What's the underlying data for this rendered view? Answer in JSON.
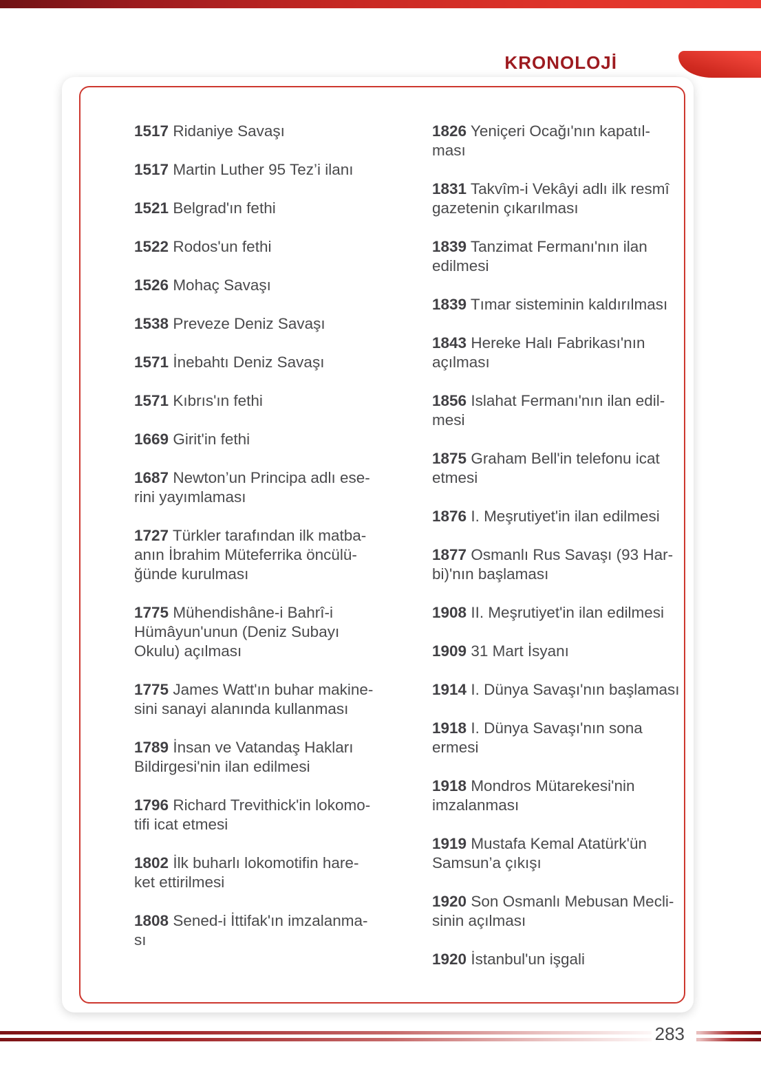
{
  "page": {
    "title": "KRONOLOJİ",
    "page_number": "283"
  },
  "colors": {
    "c-title": "#9d1b20",
    "c-border": "#cd372e",
    "c-text": "#4a4a4c",
    "c-year": "#414044",
    "c-pagenum": "#48484a",
    "c-ribbon-bright": "#f0453a",
    "c-ribbon-dark": "#c2221a",
    "c-rule-dark": "#7c1316"
  },
  "timeline": {
    "left_column": [
      {
        "year": "1517",
        "lines": [
          "Ridaniye Savaşı"
        ]
      },
      {
        "year": "1517",
        "lines": [
          "Martin Luther 95 Tez’i ilanı"
        ]
      },
      {
        "year": "1521",
        "lines": [
          "Belgrad'ın fethi"
        ]
      },
      {
        "year": "1522",
        "lines": [
          "Rodos'un fethi"
        ]
      },
      {
        "year": "1526",
        "lines": [
          "Mohaç Savaşı"
        ]
      },
      {
        "year": "1538",
        "lines": [
          "Preveze Deniz Savaşı"
        ]
      },
      {
        "year": "1571",
        "lines": [
          "İnebahtı Deniz Savaşı"
        ]
      },
      {
        "year": "1571",
        "lines": [
          "Kıbrıs'ın fethi"
        ]
      },
      {
        "year": "1669",
        "lines": [
          "Girit'in fethi"
        ]
      },
      {
        "year": "1687",
        "lines": [
          "Newton’un Principa adlı ese-",
          "rini yayımlaması"
        ]
      },
      {
        "year": "1727",
        "lines": [
          "Türkler tarafından ilk matba-",
          "anın İbrahim Müteferrika öncülü-",
          "ğünde kurulması"
        ]
      },
      {
        "year": "1775",
        "lines": [
          "Mühendishâne-i Bahrî-i",
          "Hümâyun'unun (Deniz Subayı",
          "Okulu) açılması"
        ]
      },
      {
        "year": "1775",
        "lines": [
          "James Watt'ın buhar makine-",
          "sini sanayi alanında kullanması"
        ]
      },
      {
        "year": "1789",
        "lines": [
          "İnsan ve Vatandaş Hakları",
          "Bildirgesi'nin ilan edilmesi"
        ]
      },
      {
        "year": "1796",
        "lines": [
          "Richard Trevithick'in lokomo-",
          "tifi icat etmesi"
        ]
      },
      {
        "year": "1802",
        "lines": [
          "İlk buharlı lokomotifin hare-",
          "ket ettirilmesi"
        ]
      },
      {
        "year": "1808",
        "lines": [
          "Sened-i İttifak'ın imzalanma-",
          "sı"
        ]
      }
    ],
    "right_column": [
      {
        "year": "1826",
        "lines": [
          "Yeniçeri Ocağı'nın kapatıl-",
          "ması"
        ]
      },
      {
        "year": "1831",
        "lines": [
          "Takvîm-i Vekâyi adlı ilk resmî",
          "gazetenin çıkarılması"
        ]
      },
      {
        "year": "1839",
        "lines": [
          "Tanzimat Fermanı'nın ilan",
          "edilmesi"
        ]
      },
      {
        "year": "1839",
        "lines": [
          "Tımar sisteminin kaldırılması"
        ]
      },
      {
        "year": "1843",
        "lines": [
          "Hereke Halı Fabrikası'nın",
          "açılması"
        ]
      },
      {
        "year": "1856",
        "lines": [
          "Islahat Fermanı'nın ilan edil-",
          "mesi"
        ]
      },
      {
        "year": "1875",
        "lines": [
          "Graham Bell'in telefonu icat",
          "etmesi"
        ]
      },
      {
        "year": "1876",
        "lines": [
          "I. Meşrutiyet'in ilan edilmesi"
        ]
      },
      {
        "year": "1877",
        "lines": [
          "Osmanlı Rus Savaşı (93 Har-",
          "bi)'nın başlaması"
        ]
      },
      {
        "year": "1908",
        "lines": [
          "II. Meşrutiyet'in ilan edilmesi"
        ]
      },
      {
        "year": "1909",
        "lines": [
          "31 Mart İsyanı"
        ]
      },
      {
        "year": "1914",
        "lines": [
          "I. Dünya Savaşı'nın başlaması"
        ]
      },
      {
        "year": "1918",
        "lines": [
          "I. Dünya Savaşı'nın sona",
          "ermesi"
        ]
      },
      {
        "year": "1918",
        "lines": [
          "Mondros Mütarekesi'nin",
          "imzalanması"
        ]
      },
      {
        "year": "1919",
        "lines": [
          "Mustafa Kemal Atatürk'ün",
          "Samsun’a çıkışı"
        ]
      },
      {
        "year": "1920",
        "lines": [
          "Son Osmanlı Mebusan Mecli-",
          "sinin açılması"
        ]
      },
      {
        "year": "1920",
        "lines": [
          "İstanbul'un işgali"
        ]
      }
    ]
  }
}
